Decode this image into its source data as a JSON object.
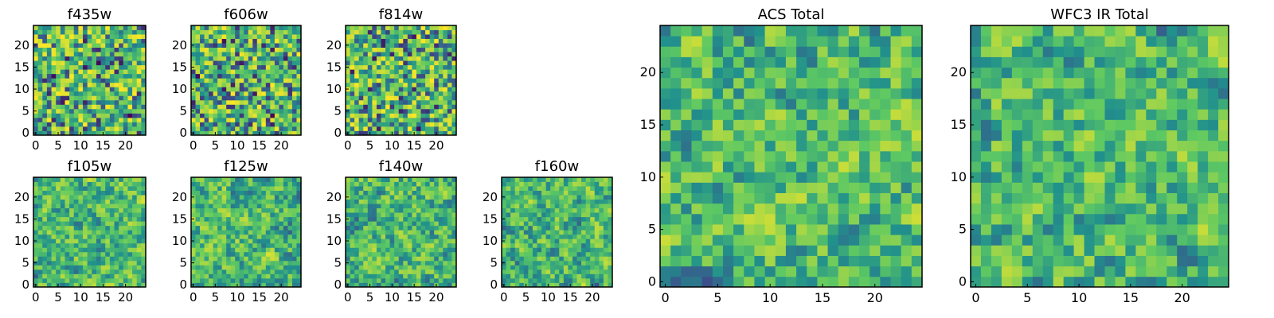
{
  "figure": {
    "description_type": "grid of heatmap panels",
    "colormap": "viridis",
    "colors": [
      "#440154",
      "#3b528b",
      "#21918c",
      "#5ec962",
      "#fde725"
    ]
  },
  "chart_data": [
    {
      "id": "f435w",
      "type": "heatmap",
      "title": "f435w",
      "grid": [
        25,
        25
      ],
      "xlim": [
        0,
        24
      ],
      "ylim": [
        0,
        24
      ],
      "xticks": [
        "0",
        "5",
        "10",
        "15",
        "20"
      ],
      "yticks": [
        "0",
        "5",
        "10",
        "15",
        "20"
      ],
      "value_range": [
        0,
        1
      ],
      "pattern_seed": 11
    },
    {
      "id": "f606w",
      "type": "heatmap",
      "title": "f606w",
      "grid": [
        25,
        25
      ],
      "xlim": [
        0,
        24
      ],
      "ylim": [
        0,
        24
      ],
      "xticks": [
        "0",
        "5",
        "10",
        "15",
        "20"
      ],
      "yticks": [
        "0",
        "5",
        "10",
        "15",
        "20"
      ],
      "value_range": [
        0,
        1
      ],
      "pattern_seed": 23
    },
    {
      "id": "f814w",
      "type": "heatmap",
      "title": "f814w",
      "grid": [
        25,
        25
      ],
      "xlim": [
        0,
        24
      ],
      "ylim": [
        0,
        24
      ],
      "xticks": [
        "0",
        "5",
        "10",
        "15",
        "20"
      ],
      "yticks": [
        "0",
        "5",
        "10",
        "15",
        "20"
      ],
      "value_range": [
        0,
        1
      ],
      "pattern_seed": 37
    },
    {
      "id": "f105w",
      "type": "heatmap",
      "title": "f105w",
      "grid": [
        25,
        25
      ],
      "xlim": [
        0,
        24
      ],
      "ylim": [
        0,
        24
      ],
      "xticks": [
        "0",
        "5",
        "10",
        "15",
        "20"
      ],
      "yticks": [
        "0",
        "5",
        "10",
        "15",
        "20"
      ],
      "value_range": [
        0,
        1
      ],
      "pattern_seed": 41
    },
    {
      "id": "f125w",
      "type": "heatmap",
      "title": "f125w",
      "grid": [
        25,
        25
      ],
      "xlim": [
        0,
        24
      ],
      "ylim": [
        0,
        24
      ],
      "xticks": [
        "0",
        "5",
        "10",
        "15",
        "20"
      ],
      "yticks": [
        "0",
        "5",
        "10",
        "15",
        "20"
      ],
      "value_range": [
        0,
        1
      ],
      "pattern_seed": 53
    },
    {
      "id": "f140w",
      "type": "heatmap",
      "title": "f140w",
      "grid": [
        25,
        25
      ],
      "xlim": [
        0,
        24
      ],
      "ylim": [
        0,
        24
      ],
      "xticks": [
        "0",
        "5",
        "10",
        "15",
        "20"
      ],
      "yticks": [
        "0",
        "5",
        "10",
        "15",
        "20"
      ],
      "value_range": [
        0,
        1
      ],
      "pattern_seed": 67
    },
    {
      "id": "f160w",
      "type": "heatmap",
      "title": "f160w",
      "grid": [
        25,
        25
      ],
      "xlim": [
        0,
        24
      ],
      "ylim": [
        0,
        24
      ],
      "xticks": [
        "0",
        "5",
        "10",
        "15",
        "20"
      ],
      "yticks": [
        "0",
        "5",
        "10",
        "15",
        "20"
      ],
      "value_range": [
        0,
        1
      ],
      "pattern_seed": 79
    },
    {
      "id": "acs-total",
      "type": "heatmap",
      "title": "ACS Total",
      "grid": [
        25,
        25
      ],
      "xlim": [
        0,
        24
      ],
      "ylim": [
        0,
        24
      ],
      "xticks": [
        "0",
        "5",
        "10",
        "15",
        "20"
      ],
      "yticks": [
        "0",
        "5",
        "10",
        "15",
        "20"
      ],
      "value_range": [
        0,
        1
      ],
      "pattern_seed": 97
    },
    {
      "id": "wfc3-ir-total",
      "type": "heatmap",
      "title": "WFC3 IR Total",
      "grid": [
        25,
        25
      ],
      "xlim": [
        0,
        24
      ],
      "ylim": [
        0,
        24
      ],
      "xticks": [
        "0",
        "5",
        "10",
        "15",
        "20"
      ],
      "yticks": [
        "0",
        "5",
        "10",
        "15",
        "20"
      ],
      "value_range": [
        0,
        1
      ],
      "pattern_seed": 113
    }
  ]
}
